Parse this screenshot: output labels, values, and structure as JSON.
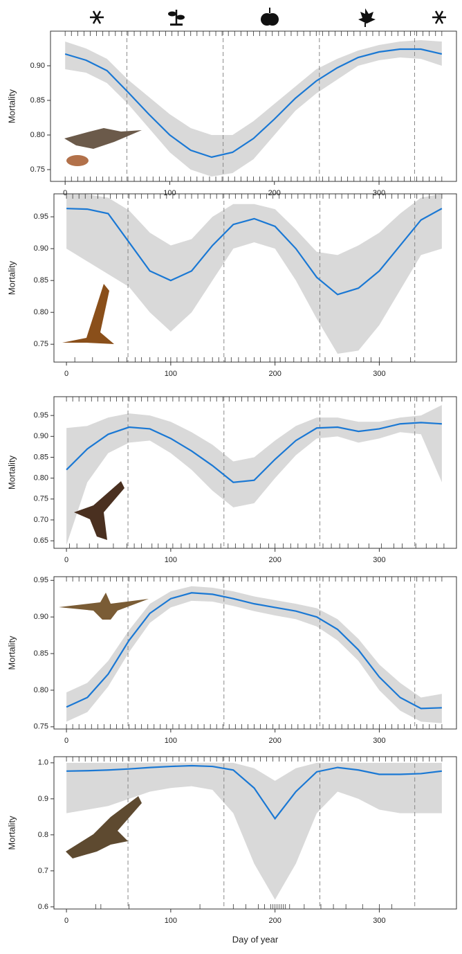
{
  "chart_data": [
    {
      "type": "line",
      "ylabel": "Mortality",
      "x": [
        0,
        20,
        40,
        60,
        80,
        100,
        120,
        140,
        160,
        180,
        200,
        220,
        240,
        260,
        280,
        300,
        320,
        340,
        360
      ],
      "series": [
        {
          "color": "#1a78d4",
          "band_color": "#d9d9d9",
          "values": [
            0.917,
            0.908,
            0.893,
            0.862,
            0.83,
            0.8,
            0.778,
            0.768,
            0.775,
            0.795,
            0.823,
            0.853,
            0.878,
            0.897,
            0.912,
            0.92,
            0.924,
            0.924,
            0.917
          ],
          "upper": [
            0.935,
            0.925,
            0.91,
            0.88,
            0.855,
            0.83,
            0.81,
            0.8,
            0.8,
            0.82,
            0.845,
            0.87,
            0.895,
            0.91,
            0.922,
            0.93,
            0.935,
            0.937,
            0.935
          ],
          "lower": [
            0.895,
            0.89,
            0.875,
            0.845,
            0.81,
            0.775,
            0.75,
            0.74,
            0.745,
            0.765,
            0.8,
            0.835,
            0.86,
            0.88,
            0.9,
            0.908,
            0.912,
            0.91,
            0.9
          ]
        }
      ],
      "xlim": [
        -14,
        374
      ],
      "ylim": [
        0.733,
        0.95
      ],
      "xticks": [
        0,
        100,
        200,
        300
      ],
      "yticks": [
        0.75,
        {
          "value": 0.8,
          "label": "0.80"
        },
        0.85,
        {
          "value": 0.9,
          "label": "0.90"
        }
      ],
      "vlines": [
        59,
        151,
        243,
        334
      ],
      "rug_top": [
        0,
        6,
        12,
        18,
        24,
        30,
        36,
        42,
        48,
        54,
        60,
        66,
        72,
        78,
        84,
        90,
        96,
        102,
        108,
        114,
        120,
        126,
        132,
        138,
        144,
        150,
        156,
        162,
        168,
        174,
        180,
        186,
        192,
        198,
        204,
        210,
        216,
        222,
        228,
        234,
        240,
        246,
        252,
        258,
        264,
        270,
        276,
        282,
        288,
        294,
        300,
        306,
        312,
        318,
        324,
        330,
        336,
        342,
        348,
        354,
        360
      ],
      "rug_bottom": [
        0,
        6,
        12,
        18,
        24,
        30,
        36,
        42,
        48,
        54,
        60,
        66,
        72,
        78,
        84,
        90,
        96,
        102,
        108,
        114,
        120,
        126,
        132,
        138,
        144,
        150,
        156,
        162,
        168,
        174,
        180,
        186,
        192,
        198,
        204,
        210,
        216,
        222,
        228,
        234,
        240,
        246,
        252,
        258,
        264,
        270,
        276,
        282,
        288,
        294,
        300,
        306,
        312,
        318,
        324,
        330,
        336,
        342,
        348,
        354,
        360
      ]
    },
    {
      "type": "line",
      "ylabel": "Mortality",
      "x": [
        0,
        20,
        40,
        60,
        80,
        100,
        120,
        140,
        160,
        180,
        200,
        220,
        240,
        260,
        280,
        300,
        320,
        340,
        360
      ],
      "series": [
        {
          "color": "#1a78d4",
          "band_color": "#d9d9d9",
          "values": [
            0.963,
            0.962,
            0.955,
            0.91,
            0.865,
            0.85,
            0.865,
            0.905,
            0.938,
            0.947,
            0.935,
            0.9,
            0.855,
            0.828,
            0.838,
            0.865,
            0.905,
            0.945,
            0.963
          ],
          "upper": [
            0.985,
            0.985,
            0.98,
            0.96,
            0.925,
            0.905,
            0.915,
            0.95,
            0.97,
            0.97,
            0.962,
            0.93,
            0.895,
            0.89,
            0.905,
            0.925,
            0.955,
            0.98,
            0.986
          ],
          "lower": [
            0.9,
            0.88,
            0.86,
            0.84,
            0.8,
            0.77,
            0.8,
            0.85,
            0.9,
            0.91,
            0.9,
            0.85,
            0.79,
            0.735,
            0.74,
            0.78,
            0.835,
            0.89,
            0.9
          ]
        }
      ],
      "xlim": [
        -12,
        374
      ],
      "ylim": [
        0.722,
        0.986
      ],
      "xticks": [
        0,
        100,
        200,
        300
      ],
      "yticks": [
        0.75,
        {
          "value": 0.8,
          "label": "0.80"
        },
        0.85,
        {
          "value": 0.9,
          "label": "0.90"
        },
        0.95
      ],
      "vlines": [
        59,
        151,
        243,
        334
      ],
      "rug_top": [
        0,
        6,
        12,
        18,
        24,
        30,
        36,
        42,
        48,
        54,
        60,
        66,
        72,
        78,
        84,
        90,
        96,
        102,
        108,
        114,
        120,
        126,
        132,
        138,
        144,
        150,
        156,
        162,
        168,
        174,
        180,
        186,
        192,
        198,
        204,
        210,
        216,
        222,
        228,
        234,
        240,
        246,
        252,
        258,
        264,
        270,
        276,
        282,
        288,
        294,
        300,
        306,
        312,
        318,
        324,
        330,
        336,
        342,
        348,
        354,
        360
      ],
      "rug_bottom": [
        8,
        25,
        50,
        58,
        66,
        72,
        80,
        88,
        95,
        100,
        106,
        112,
        120,
        126,
        132,
        140,
        146,
        152,
        158,
        165,
        172,
        180,
        186,
        195,
        200,
        205,
        210,
        218,
        225,
        232,
        240,
        248,
        255,
        262,
        270,
        278,
        285,
        292,
        300,
        312,
        330
      ]
    },
    {
      "type": "line",
      "ylabel": "Mortality",
      "x": [
        0,
        20,
        40,
        60,
        80,
        100,
        120,
        140,
        160,
        180,
        200,
        220,
        240,
        260,
        280,
        300,
        320,
        340,
        360
      ],
      "series": [
        {
          "color": "#1a78d4",
          "band_color": "#d9d9d9",
          "values": [
            0.82,
            0.87,
            0.905,
            0.922,
            0.918,
            0.895,
            0.865,
            0.83,
            0.79,
            0.795,
            0.845,
            0.89,
            0.92,
            0.922,
            0.912,
            0.918,
            0.93,
            0.933,
            0.93
          ],
          "upper": [
            0.92,
            0.925,
            0.945,
            0.955,
            0.95,
            0.935,
            0.91,
            0.88,
            0.84,
            0.85,
            0.89,
            0.925,
            0.945,
            0.945,
            0.935,
            0.935,
            0.945,
            0.95,
            0.975
          ],
          "lower": [
            0.64,
            0.79,
            0.86,
            0.885,
            0.89,
            0.86,
            0.82,
            0.77,
            0.73,
            0.74,
            0.8,
            0.855,
            0.895,
            0.9,
            0.885,
            0.895,
            0.91,
            0.905,
            0.79
          ]
        }
      ],
      "xlim": [
        -12,
        374
      ],
      "ylim": [
        0.632,
        0.995
      ],
      "xticks": [
        0,
        100,
        200,
        300
      ],
      "yticks": [
        0.65,
        {
          "value": 0.7,
          "label": "0.70"
        },
        0.75,
        {
          "value": 0.8,
          "label": "0.80"
        },
        0.85,
        {
          "value": 0.9,
          "label": "0.90"
        },
        0.95
      ],
      "vlines": [
        59,
        151,
        243,
        334
      ],
      "rug_top": [
        0,
        6,
        12,
        18,
        24,
        30,
        36,
        42,
        48,
        54,
        60,
        66,
        72,
        78,
        84,
        90,
        96,
        102,
        108,
        114,
        120,
        126,
        132,
        138,
        144,
        150,
        156,
        162,
        168,
        174,
        180,
        186,
        192,
        198,
        204,
        210,
        216,
        222,
        228,
        234,
        240,
        246,
        252,
        258,
        264,
        270,
        276,
        282,
        288,
        294,
        300,
        306,
        312,
        318,
        324,
        330,
        336,
        342,
        348,
        354,
        360
      ],
      "rug_bottom": [
        3,
        10,
        22,
        30,
        45,
        58,
        65,
        72,
        82,
        88,
        96,
        102,
        110,
        118,
        125,
        132,
        140,
        148,
        155,
        162,
        170,
        178,
        186,
        194,
        200,
        208,
        215,
        222,
        230,
        238,
        246,
        254,
        262,
        270,
        280,
        290,
        302,
        314,
        322,
        335,
        345,
        355,
        362
      ]
    },
    {
      "type": "line",
      "ylabel": "Mortality",
      "x": [
        0,
        20,
        40,
        60,
        80,
        100,
        120,
        140,
        160,
        180,
        200,
        220,
        240,
        260,
        280,
        300,
        320,
        340,
        360
      ],
      "series": [
        {
          "color": "#1a78d4",
          "band_color": "#d9d9d9",
          "values": [
            0.777,
            0.79,
            0.822,
            0.868,
            0.905,
            0.925,
            0.933,
            0.931,
            0.925,
            0.918,
            0.913,
            0.908,
            0.9,
            0.883,
            0.855,
            0.818,
            0.79,
            0.775,
            0.776
          ],
          "upper": [
            0.797,
            0.81,
            0.84,
            0.882,
            0.918,
            0.935,
            0.942,
            0.94,
            0.935,
            0.928,
            0.923,
            0.918,
            0.912,
            0.897,
            0.87,
            0.835,
            0.81,
            0.79,
            0.795
          ],
          "lower": [
            0.757,
            0.77,
            0.805,
            0.852,
            0.892,
            0.913,
            0.922,
            0.921,
            0.915,
            0.908,
            0.902,
            0.897,
            0.887,
            0.868,
            0.84,
            0.8,
            0.772,
            0.757,
            0.755
          ]
        }
      ],
      "xlim": [
        -12,
        374
      ],
      "ylim": [
        0.747,
        0.955
      ],
      "xticks": [
        0,
        100,
        200,
        300
      ],
      "yticks": [
        0.75,
        {
          "value": 0.8,
          "label": "0.80"
        },
        0.85,
        {
          "value": 0.9,
          "label": "0.90"
        },
        0.95
      ],
      "vlines": [
        59,
        151,
        243,
        334
      ],
      "rug_top": [
        0,
        6,
        12,
        18,
        24,
        30,
        36,
        42,
        48,
        54,
        60,
        66,
        72,
        78,
        84,
        90,
        96,
        102,
        108,
        114,
        120,
        126,
        132,
        138,
        144,
        150,
        156,
        162,
        168,
        174,
        180,
        186,
        192,
        198,
        204,
        210,
        216,
        222,
        228,
        234,
        240,
        246,
        252,
        258,
        264,
        270,
        276,
        282,
        288,
        294,
        300,
        306,
        312,
        318,
        324,
        330,
        336,
        342,
        348,
        354,
        360
      ],
      "rug_bottom": [
        0,
        6,
        12,
        18,
        24,
        30,
        36,
        42,
        48,
        54,
        60,
        66,
        72,
        78,
        84,
        90,
        96,
        102,
        108,
        114,
        120,
        126,
        132,
        138,
        144,
        150,
        156,
        162,
        168,
        174,
        180,
        186,
        192,
        198,
        204,
        210,
        216,
        222,
        228,
        234,
        240,
        246,
        252,
        258,
        264,
        270,
        276,
        282,
        288,
        294,
        300,
        306,
        312,
        318,
        324,
        330,
        336,
        342,
        348,
        354,
        360
      ]
    },
    {
      "type": "line",
      "ylabel": "Mortality",
      "xlabel": "Day of year",
      "x": [
        0,
        20,
        40,
        60,
        80,
        100,
        120,
        140,
        160,
        180,
        200,
        220,
        240,
        260,
        280,
        300,
        320,
        340,
        360
      ],
      "series": [
        {
          "color": "#1a78d4",
          "band_color": "#d9d9d9",
          "values": [
            0.977,
            0.978,
            0.98,
            0.983,
            0.987,
            0.99,
            0.992,
            0.99,
            0.98,
            0.93,
            0.845,
            0.92,
            0.975,
            0.987,
            0.98,
            0.968,
            0.968,
            0.97,
            0.977
          ],
          "upper": [
            1.0,
            1.0,
            1.0,
            1.0,
            1.0,
            1.0,
            1.0,
            1.0,
            1.0,
            0.985,
            0.95,
            0.985,
            1.0,
            1.0,
            1.0,
            1.0,
            1.0,
            1.0,
            1.0
          ],
          "lower": [
            0.86,
            0.87,
            0.88,
            0.9,
            0.92,
            0.93,
            0.935,
            0.925,
            0.86,
            0.72,
            0.62,
            0.72,
            0.86,
            0.92,
            0.9,
            0.87,
            0.86,
            0.86,
            0.86
          ]
        }
      ],
      "xlim": [
        -12,
        374
      ],
      "ylim": [
        0.594,
        1.017
      ],
      "xticks": [
        0,
        100,
        200,
        300
      ],
      "yticks": [
        0.6,
        0.7,
        0.8,
        0.9,
        {
          "value": 1,
          "label": "1.0"
        }
      ],
      "vlines": [
        59,
        151,
        243,
        334
      ],
      "rug_top": [
        0,
        6,
        12,
        18,
        24,
        30,
        36,
        42,
        48,
        54,
        60,
        66,
        72,
        78,
        84,
        90,
        96,
        102,
        108,
        114,
        120,
        126,
        132,
        138,
        144,
        150,
        156,
        162,
        168,
        174,
        180,
        186,
        192,
        198,
        204,
        210,
        216,
        222,
        228,
        234,
        240,
        246,
        252,
        258,
        264,
        270,
        276,
        282,
        288,
        294,
        300,
        306,
        312,
        318,
        324,
        330,
        336,
        342,
        348,
        354,
        360
      ],
      "rug_bottom": [
        28,
        33,
        60,
        128,
        160,
        172,
        184,
        190,
        196,
        198,
        200,
        202,
        204,
        206,
        208,
        210,
        214,
        228,
        244,
        256,
        268,
        284,
        300,
        312
      ]
    }
  ]
}
